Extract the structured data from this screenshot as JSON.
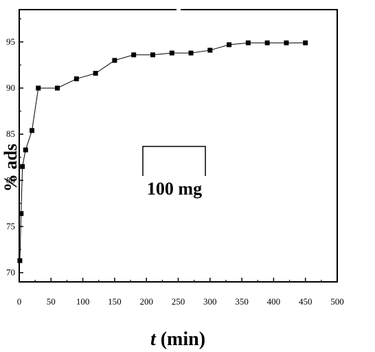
{
  "chart_data": {
    "type": "line",
    "xlabel_italic": "t",
    "xlabel_rest": " (min)",
    "ylabel": "% ads",
    "xlim": [
      0,
      500
    ],
    "ylim": [
      69,
      98.5
    ],
    "xticks": [
      0,
      50,
      100,
      150,
      200,
      250,
      300,
      350,
      400,
      450,
      500
    ],
    "yticks": [
      70,
      75,
      80,
      85,
      90,
      95
    ],
    "marker": "square",
    "color": "#000000",
    "series": [
      {
        "name": "100 mg",
        "x": [
          1,
          3,
          5,
          10,
          20,
          30,
          60,
          90,
          120,
          150,
          180,
          210,
          240,
          270,
          300,
          330,
          360,
          390,
          420,
          450
        ],
        "y": [
          71.3,
          76.4,
          81.5,
          83.3,
          85.4,
          90.0,
          90.0,
          91.0,
          91.6,
          93.0,
          93.6,
          93.6,
          93.8,
          93.8,
          94.1,
          94.7,
          94.9,
          94.9,
          94.9,
          94.9
        ]
      }
    ],
    "legend": {
      "label": "100 mg",
      "placement": "center"
    }
  }
}
